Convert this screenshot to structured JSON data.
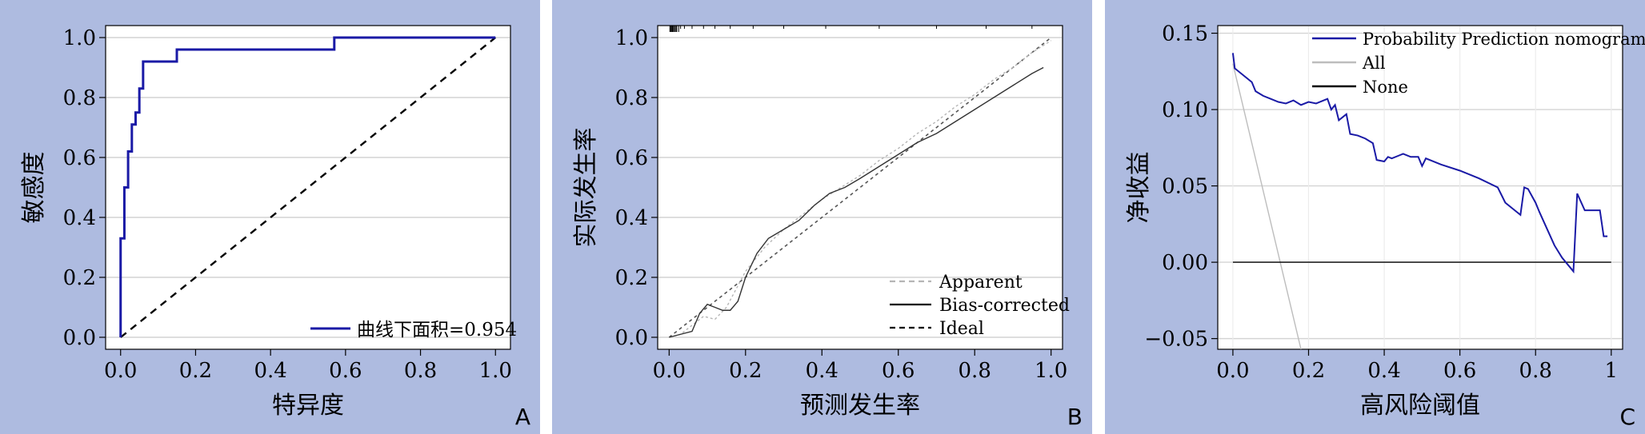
{
  "chart_data": [
    {
      "panel": "A",
      "type": "line",
      "xlabel": "特异度",
      "ylabel": "敏感度",
      "xlim": [
        0,
        1
      ],
      "ylim": [
        0,
        1
      ],
      "xticks": [
        "0.0",
        "0.2",
        "0.4",
        "0.6",
        "0.8",
        "1.0"
      ],
      "yticks": [
        "0.0",
        "0.2",
        "0.4",
        "0.6",
        "0.8",
        "1.0"
      ],
      "grid": "horizontal",
      "legend_position": "bottom-right",
      "colors": {
        "curve": "#1a1aa6",
        "reference": "#000000",
        "background": "#ffffff",
        "panel_bg": "#aebbe0"
      },
      "series": [
        {
          "name": "曲线下面积=0.954",
          "style": "solid",
          "x": [
            0.0,
            0.0,
            0.0,
            0.0,
            0.0,
            0.01,
            0.01,
            0.02,
            0.02,
            0.03,
            0.03,
            0.04,
            0.04,
            0.05,
            0.05,
            0.06,
            0.06,
            0.15,
            0.15,
            0.57,
            0.57,
            1.0
          ],
          "y": [
            0.0,
            0.0,
            0.21,
            0.21,
            0.33,
            0.33,
            0.5,
            0.5,
            0.62,
            0.62,
            0.71,
            0.71,
            0.75,
            0.75,
            0.83,
            0.83,
            0.92,
            0.92,
            0.96,
            0.96,
            1.0,
            1.0
          ]
        },
        {
          "style": "dashed",
          "x": [
            0,
            1
          ],
          "y": [
            0,
            1
          ]
        }
      ]
    },
    {
      "panel": "B",
      "type": "line",
      "xlabel": "预测发生率",
      "ylabel": "实际发生率",
      "xlim": [
        0,
        1
      ],
      "ylim": [
        0,
        1
      ],
      "xticks": [
        "0.0",
        "0.2",
        "0.4",
        "0.6",
        "0.8",
        "1.0"
      ],
      "yticks": [
        "0.0",
        "0.2",
        "0.4",
        "0.6",
        "0.8",
        "1.0"
      ],
      "grid": "horizontal",
      "legend_position": "bottom-right",
      "rug_top": true,
      "series": [
        {
          "name": "Apparent",
          "style": "dashed-gray",
          "x": [
            0.0,
            0.03,
            0.06,
            0.09,
            0.12,
            0.15,
            0.2,
            0.25,
            0.3,
            0.35,
            0.4,
            0.45,
            0.5,
            0.55,
            0.6,
            0.65,
            0.7,
            0.75,
            0.8,
            0.85,
            0.9,
            0.95,
            1.0
          ],
          "y": [
            0.0,
            0.01,
            0.04,
            0.07,
            0.06,
            0.1,
            0.22,
            0.3,
            0.36,
            0.41,
            0.46,
            0.5,
            0.54,
            0.59,
            0.63,
            0.68,
            0.72,
            0.77,
            0.81,
            0.86,
            0.9,
            0.95,
            0.99
          ]
        },
        {
          "name": "Bias-corrected",
          "style": "solid",
          "x": [
            0.0,
            0.03,
            0.06,
            0.08,
            0.1,
            0.12,
            0.14,
            0.16,
            0.18,
            0.2,
            0.23,
            0.26,
            0.3,
            0.34,
            0.38,
            0.42,
            0.46,
            0.5,
            0.55,
            0.6,
            0.65,
            0.7,
            0.75,
            0.8,
            0.85,
            0.9,
            0.95,
            0.98
          ],
          "y": [
            0.0,
            0.01,
            0.02,
            0.08,
            0.11,
            0.1,
            0.09,
            0.09,
            0.12,
            0.2,
            0.28,
            0.33,
            0.36,
            0.39,
            0.44,
            0.48,
            0.5,
            0.53,
            0.57,
            0.61,
            0.65,
            0.68,
            0.72,
            0.76,
            0.8,
            0.84,
            0.88,
            0.9
          ]
        },
        {
          "name": "Ideal",
          "style": "dashed-black",
          "x": [
            0,
            1.0
          ],
          "y": [
            0,
            1.0
          ]
        }
      ]
    },
    {
      "panel": "C",
      "type": "line",
      "xlabel": "高风险阈值",
      "ylabel": "净收益",
      "xlim": [
        0,
        1
      ],
      "ylim": [
        -0.057,
        0.155
      ],
      "xticks": [
        "0.0",
        "0.2",
        "0.4",
        "0.6",
        "0.8",
        "1"
      ],
      "yticks": [
        "−0.05",
        "0.00",
        "0.05",
        "0.10",
        "0.15"
      ],
      "grid": "both",
      "legend_position": "top-right",
      "series": [
        {
          "name": "Probability Prediction nomogram",
          "color": "#1a1aa6",
          "x": [
            0.0,
            0.005,
            0.02,
            0.05,
            0.06,
            0.08,
            0.1,
            0.12,
            0.14,
            0.16,
            0.18,
            0.2,
            0.22,
            0.25,
            0.26,
            0.27,
            0.28,
            0.3,
            0.31,
            0.33,
            0.35,
            0.37,
            0.38,
            0.4,
            0.41,
            0.42,
            0.44,
            0.45,
            0.47,
            0.49,
            0.5,
            0.51,
            0.52,
            0.55,
            0.6,
            0.65,
            0.7,
            0.72,
            0.74,
            0.76,
            0.77,
            0.78,
            0.8,
            0.81,
            0.83,
            0.85,
            0.87,
            0.9,
            0.91,
            0.93,
            0.95,
            0.97,
            0.98,
            0.99
          ],
          "y": [
            0.137,
            0.127,
            0.124,
            0.118,
            0.112,
            0.109,
            0.107,
            0.105,
            0.104,
            0.106,
            0.103,
            0.105,
            0.104,
            0.107,
            0.1,
            0.103,
            0.093,
            0.097,
            0.084,
            0.083,
            0.081,
            0.078,
            0.067,
            0.066,
            0.069,
            0.068,
            0.07,
            0.071,
            0.069,
            0.069,
            0.063,
            0.068,
            0.067,
            0.064,
            0.06,
            0.055,
            0.049,
            0.039,
            0.035,
            0.031,
            0.049,
            0.048,
            0.039,
            0.033,
            0.022,
            0.011,
            0.003,
            -0.006,
            0.045,
            0.034,
            0.034,
            0.034,
            0.017,
            0.017
          ]
        },
        {
          "name": "All",
          "color": "#bdbdbd",
          "x": [
            0.0,
            0.18
          ],
          "y": [
            0.13,
            -0.057
          ]
        },
        {
          "name": "None",
          "color": "#000000",
          "x": [
            0.0,
            1.0
          ],
          "y": [
            0.0,
            0.0
          ]
        }
      ]
    }
  ]
}
